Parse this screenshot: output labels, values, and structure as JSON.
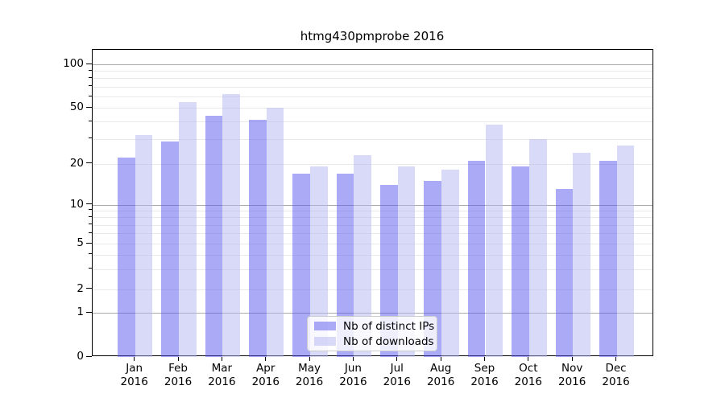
{
  "chart_data": {
    "type": "bar",
    "title": "htmg430pmprobe 2016",
    "categories": [
      "Jan",
      "Feb",
      "Mar",
      "Apr",
      "May",
      "Jun",
      "Jul",
      "Aug",
      "Sep",
      "Oct",
      "Nov",
      "Dec"
    ],
    "x_year": "2016",
    "series": [
      {
        "name": "Nb of distinct IPs",
        "color": "#5555ee",
        "opacity": 0.5,
        "values": [
          22,
          29,
          44,
          41,
          17,
          17,
          14,
          15,
          21,
          19,
          13,
          21
        ]
      },
      {
        "name": "Nb of downloads",
        "color": "#b3b3f1",
        "opacity": 0.5,
        "values": [
          32,
          55,
          62,
          50,
          19,
          23,
          19,
          18,
          38,
          30,
          24,
          27
        ]
      }
    ],
    "yscale": "symlog",
    "ylim": [
      0,
      130
    ],
    "y_ticks": [
      0,
      1,
      2,
      5,
      10,
      20,
      50,
      100
    ],
    "y_major_gridlines": [
      1,
      10,
      100
    ],
    "y_minor_gridlines": [
      2,
      3,
      4,
      5,
      6,
      7,
      8,
      9,
      20,
      30,
      40,
      50,
      60,
      70,
      80,
      90
    ],
    "grid": true,
    "legend_position": "lower center"
  },
  "colors": {
    "background": "#ffffff",
    "axis": "#000000",
    "major_grid": "#ababab",
    "minor_grid": "#e9e9e9",
    "text": "#000000",
    "legend_border": "#cccccc",
    "legend_background": "rgba(255,255,255,0.8)"
  }
}
